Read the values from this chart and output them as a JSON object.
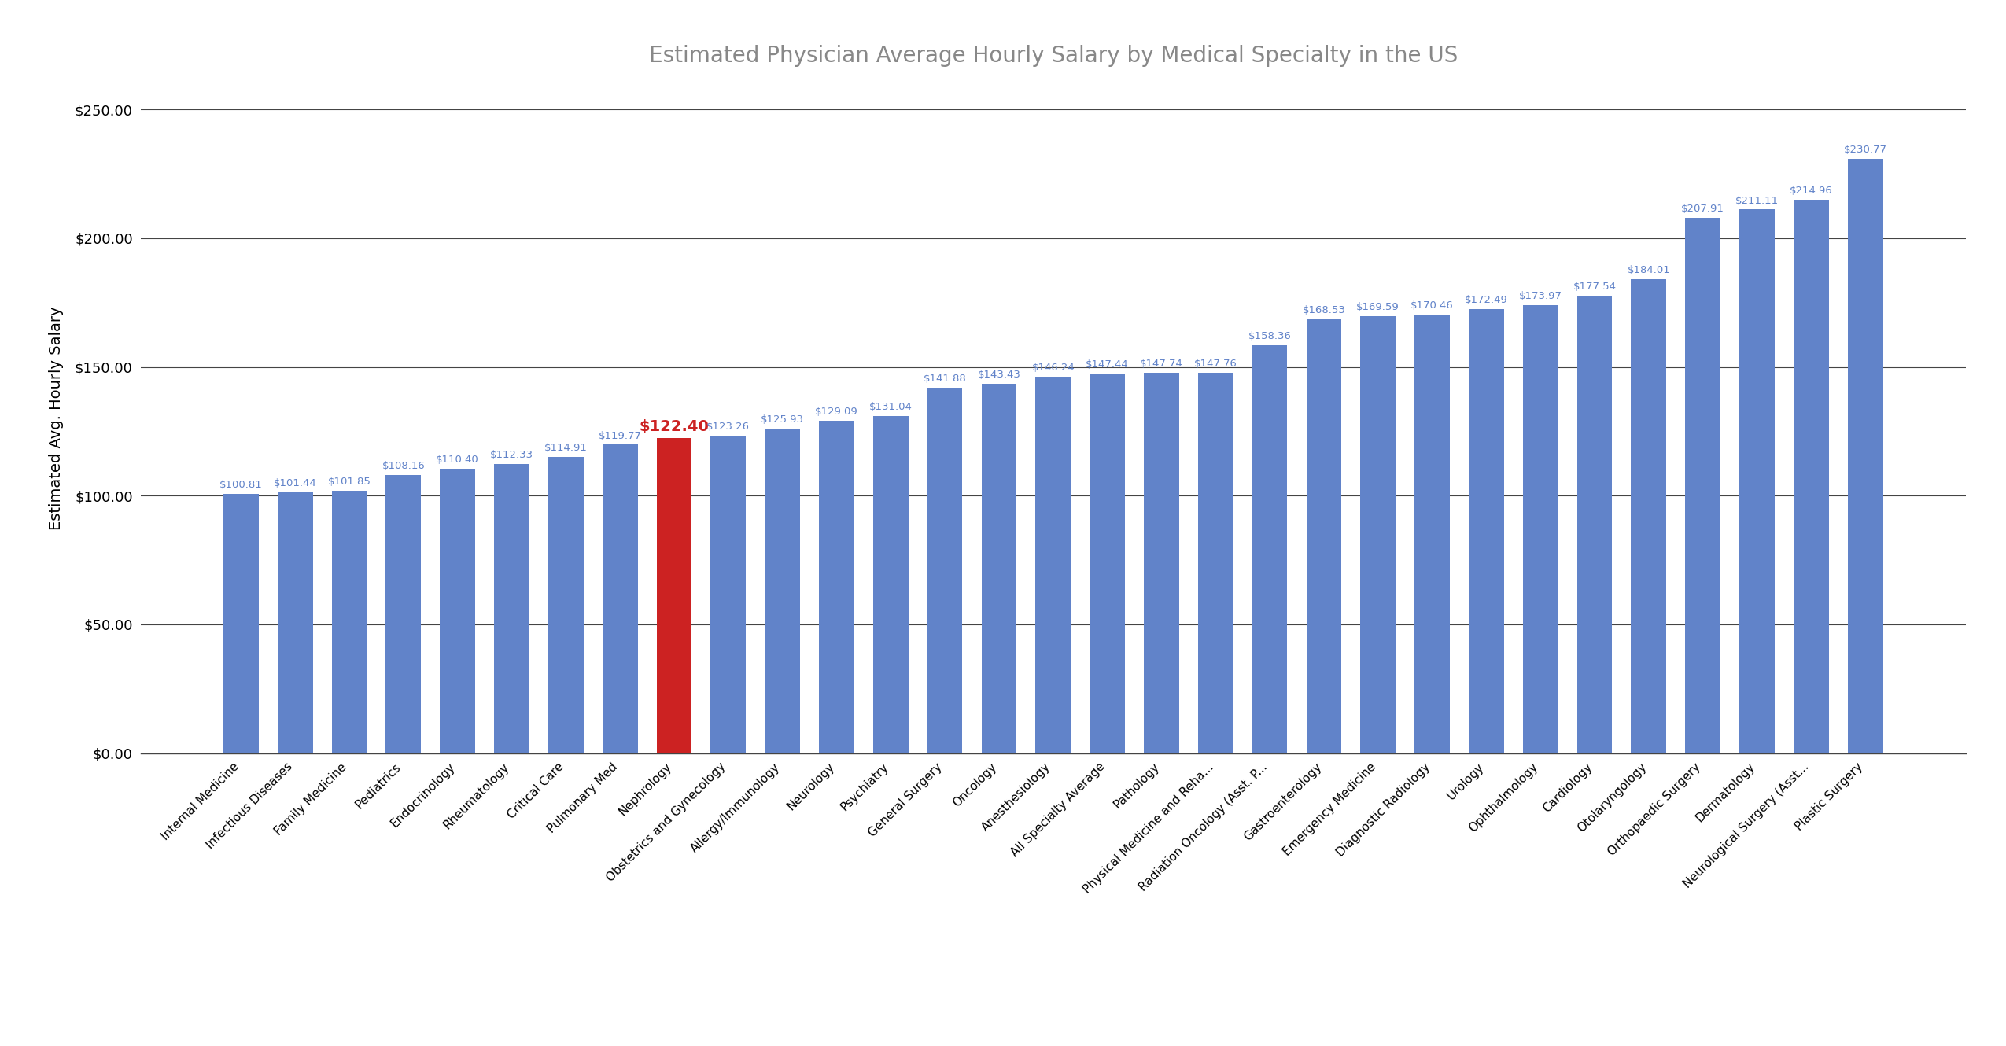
{
  "title": "Estimated Physician Average Hourly Salary by Medical Specialty in the US",
  "ylabel": "Estimated Avg. Hourly Salary",
  "categories": [
    "Internal Medicine",
    "Infectious Diseases",
    "Family Medicine",
    "Pediatrics",
    "Endocrinology",
    "Rheumatology",
    "Critical Care",
    "Pulmonary Med",
    "Nephrology",
    "Obstetrics and Gynecology",
    "Allergy/Immunology",
    "Neurology",
    "Psychiatry",
    "General Surgery",
    "Oncology",
    "Anesthesiology",
    "All Specialty Average",
    "Pathology",
    "Physical Medicine and Reha...",
    "Radiation Oncology (Asst. P...",
    "Gastroenterology",
    "Emergency Medicine",
    "Diagnostic Radiology",
    "Urology",
    "Ophthalmology",
    "Cardiology",
    "Otolaryngology",
    "Orthopaedic Surgery",
    "Dermatology",
    "Neurological Surgery (Asst...",
    "Plastic Surgery"
  ],
  "values": [
    100.81,
    101.44,
    101.85,
    108.16,
    110.4,
    112.33,
    114.91,
    119.77,
    122.4,
    123.26,
    125.93,
    129.09,
    131.04,
    141.88,
    143.43,
    146.24,
    147.44,
    147.74,
    147.76,
    158.36,
    168.53,
    169.59,
    170.46,
    172.49,
    173.97,
    177.54,
    184.01,
    207.91,
    211.11,
    214.96,
    230.77
  ],
  "highlight_index": 8,
  "bar_color": "#6183c9",
  "highlight_color": "#cc2222",
  "label_color": "#6183c9",
  "highlight_label_color": "#cc2222",
  "background_color": "#ffffff",
  "title_color": "#888888",
  "ytick_color": "#000000",
  "xtick_color": "#000000",
  "ylabel_color": "#000000",
  "grid_color": "#444444",
  "ylim": [
    0,
    260
  ],
  "yticks": [
    0,
    50,
    100,
    150,
    200,
    250
  ],
  "title_fontsize": 20,
  "label_fontsize": 9.5,
  "highlight_label_fontsize": 14,
  "ylabel_fontsize": 14,
  "ytick_fontsize": 13,
  "xtick_fontsize": 11
}
